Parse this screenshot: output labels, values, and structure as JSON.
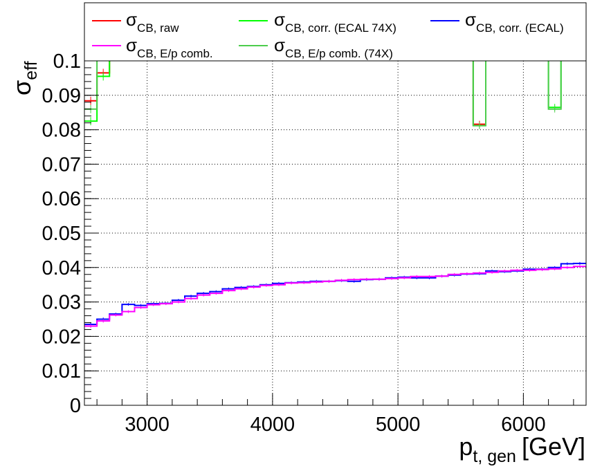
{
  "chart_data": {
    "type": "line",
    "xlabel": {
      "main": "p",
      "sub": "t, gen",
      "unit": "[GeV]"
    },
    "ylabel": {
      "main": "σ",
      "sub": "eff"
    },
    "xlim": [
      2500,
      6500
    ],
    "ylim": [
      0,
      0.1
    ],
    "x_ticks": [
      3000,
      4000,
      5000,
      6000
    ],
    "x_tick_labels": [
      "3000",
      "4000",
      "5000",
      "6000"
    ],
    "y_ticks": [
      0,
      0.01,
      0.02,
      0.03,
      0.04,
      0.05,
      0.06,
      0.07,
      0.08,
      0.09,
      0.1
    ],
    "y_tick_labels": [
      "0",
      "0.01",
      "0.02",
      "0.03",
      "0.04",
      "0.05",
      "0.06",
      "0.07",
      "0.08",
      "0.09",
      "0.1"
    ],
    "grid": true,
    "legend_position": "top",
    "bin_edges": [
      2500,
      2600,
      2700,
      2800,
      2900,
      3000,
      3100,
      3200,
      3300,
      3400,
      3500,
      3600,
      3700,
      3800,
      3900,
      4000,
      4100,
      4200,
      4300,
      4400,
      4500,
      4600,
      4700,
      4800,
      4900,
      5000,
      5100,
      5200,
      5300,
      5400,
      5500,
      5600,
      5700,
      5800,
      5900,
      6000,
      6100,
      6200,
      6300,
      6400,
      6500
    ],
    "series": [
      {
        "name_main": "σ",
        "name_sub": "CB, raw",
        "color": "#ff0000",
        "values": [
          0.0884,
          0.0965,
          0.103,
          0.105,
          0.104,
          0.1055,
          0.106,
          0.105,
          0.104,
          0.105,
          0.104,
          0.1045,
          0.105,
          0.1055,
          0.105,
          0.104,
          0.105,
          0.106,
          0.1045,
          0.105,
          0.104,
          0.105,
          0.105,
          0.104,
          0.1055,
          0.105,
          0.1045,
          0.105,
          0.106,
          0.105,
          0.104,
          0.0816,
          0.105,
          0.1045,
          0.105,
          0.104,
          0.105,
          0.105,
          0.1045,
          0.105
        ],
        "errors": [
          0.0012,
          0.0012,
          0.001,
          0.001,
          0.001,
          0.001,
          0.001,
          0.001,
          0.001,
          0.001,
          0.001,
          0.001,
          0.001,
          0.001,
          0.001,
          0.001,
          0.001,
          0.001,
          0.001,
          0.001,
          0.001,
          0.001,
          0.001,
          0.001,
          0.001,
          0.001,
          0.001,
          0.001,
          0.001,
          0.001,
          0.001,
          0.001,
          0.001,
          0.001,
          0.001,
          0.001,
          0.001,
          0.001,
          0.001,
          0.001
        ]
      },
      {
        "name_main": "σ",
        "name_sub": "CB, corr. (ECAL 74X)",
        "color": "#00ff00",
        "values": [
          0.0825,
          0.0955,
          0.103,
          0.105,
          0.104,
          0.1055,
          0.106,
          0.105,
          0.104,
          0.105,
          0.104,
          0.1045,
          0.105,
          0.1055,
          0.105,
          0.104,
          0.105,
          0.106,
          0.1045,
          0.105,
          0.104,
          0.105,
          0.105,
          0.104,
          0.1055,
          0.105,
          0.1045,
          0.105,
          0.106,
          0.105,
          0.104,
          0.0812,
          0.105,
          0.1045,
          0.105,
          0.104,
          0.105,
          0.0865,
          0.1045,
          0.105
        ],
        "errors": [
          0.0012,
          0.0012,
          0.001,
          0.001,
          0.001,
          0.001,
          0.001,
          0.001,
          0.001,
          0.001,
          0.001,
          0.001,
          0.001,
          0.001,
          0.001,
          0.001,
          0.001,
          0.001,
          0.001,
          0.001,
          0.001,
          0.001,
          0.001,
          0.001,
          0.001,
          0.001,
          0.001,
          0.001,
          0.001,
          0.001,
          0.001,
          0.001,
          0.001,
          0.001,
          0.001,
          0.001,
          0.001,
          0.001,
          0.001,
          0.001
        ]
      },
      {
        "name_main": "σ",
        "name_sub": "CB, corr. (ECAL)",
        "color": "#0000ff",
        "values": [
          0.0235,
          0.025,
          0.0265,
          0.0293,
          0.029,
          0.0295,
          0.0296,
          0.0305,
          0.0317,
          0.0325,
          0.033,
          0.0338,
          0.0342,
          0.0345,
          0.035,
          0.0354,
          0.0356,
          0.0358,
          0.036,
          0.036,
          0.0362,
          0.036,
          0.0365,
          0.0366,
          0.037,
          0.0372,
          0.037,
          0.037,
          0.0375,
          0.0378,
          0.0381,
          0.0382,
          0.039,
          0.0388,
          0.039,
          0.0395,
          0.0395,
          0.04,
          0.0411,
          0.0412
        ],
        "errors": [
          0.0005,
          0.0005,
          0.0004,
          0.0004,
          0.0004,
          0.0004,
          0.0004,
          0.0004,
          0.0004,
          0.0004,
          0.0004,
          0.0004,
          0.0004,
          0.0004,
          0.0004,
          0.0004,
          0.0004,
          0.0004,
          0.0004,
          0.0004,
          0.0004,
          0.0004,
          0.0004,
          0.0004,
          0.0004,
          0.0004,
          0.0004,
          0.0004,
          0.0004,
          0.0004,
          0.0004,
          0.0004,
          0.0004,
          0.0004,
          0.0004,
          0.0004,
          0.0004,
          0.0004,
          0.0004,
          0.0004
        ]
      },
      {
        "name_main": "σ",
        "name_sub": "CB, E/p comb.",
        "color": "#ff00ff",
        "values": [
          0.023,
          0.0245,
          0.0262,
          0.0272,
          0.0284,
          0.0292,
          0.0295,
          0.03,
          0.031,
          0.032,
          0.0325,
          0.0333,
          0.0338,
          0.0343,
          0.0348,
          0.035,
          0.0355,
          0.0356,
          0.0358,
          0.036,
          0.0363,
          0.0365,
          0.0366,
          0.0366,
          0.0368,
          0.037,
          0.0374,
          0.0374,
          0.0375,
          0.038,
          0.0382,
          0.0384,
          0.0386,
          0.039,
          0.0392,
          0.0392,
          0.0394,
          0.0396,
          0.04,
          0.0403
        ],
        "errors": [
          0.0005,
          0.0005,
          0.0004,
          0.0004,
          0.0004,
          0.0004,
          0.0004,
          0.0004,
          0.0004,
          0.0004,
          0.0004,
          0.0004,
          0.0004,
          0.0004,
          0.0004,
          0.0004,
          0.0004,
          0.0004,
          0.0004,
          0.0004,
          0.0004,
          0.0004,
          0.0004,
          0.0004,
          0.0004,
          0.0004,
          0.0004,
          0.0004,
          0.0004,
          0.0004,
          0.0004,
          0.0004,
          0.0004,
          0.0004,
          0.0004,
          0.0004,
          0.0004,
          0.0004,
          0.0004,
          0.0004
        ]
      },
      {
        "name_main": "σ",
        "name_sub": "CB, E/p comb. (74X)",
        "color": "#4ccc4c",
        "values": [
          0.086,
          0.104,
          0.103,
          0.105,
          0.104,
          0.1055,
          0.106,
          0.105,
          0.104,
          0.105,
          0.104,
          0.1045,
          0.105,
          0.1055,
          0.105,
          0.104,
          0.105,
          0.106,
          0.1045,
          0.105,
          0.104,
          0.105,
          0.105,
          0.104,
          0.1055,
          0.105,
          0.1045,
          0.105,
          0.106,
          0.105,
          0.104,
          0.0812,
          0.105,
          0.1045,
          0.105,
          0.104,
          0.105,
          0.086,
          0.1045,
          0.105
        ],
        "errors": [
          0.0012,
          0.0012,
          0.001,
          0.001,
          0.001,
          0.001,
          0.001,
          0.001,
          0.001,
          0.001,
          0.001,
          0.001,
          0.001,
          0.001,
          0.001,
          0.001,
          0.001,
          0.001,
          0.001,
          0.001,
          0.001,
          0.001,
          0.001,
          0.001,
          0.001,
          0.001,
          0.001,
          0.001,
          0.001,
          0.001,
          0.001,
          0.001,
          0.001,
          0.001,
          0.001,
          0.001,
          0.001,
          0.001,
          0.001,
          0.001
        ]
      }
    ]
  }
}
